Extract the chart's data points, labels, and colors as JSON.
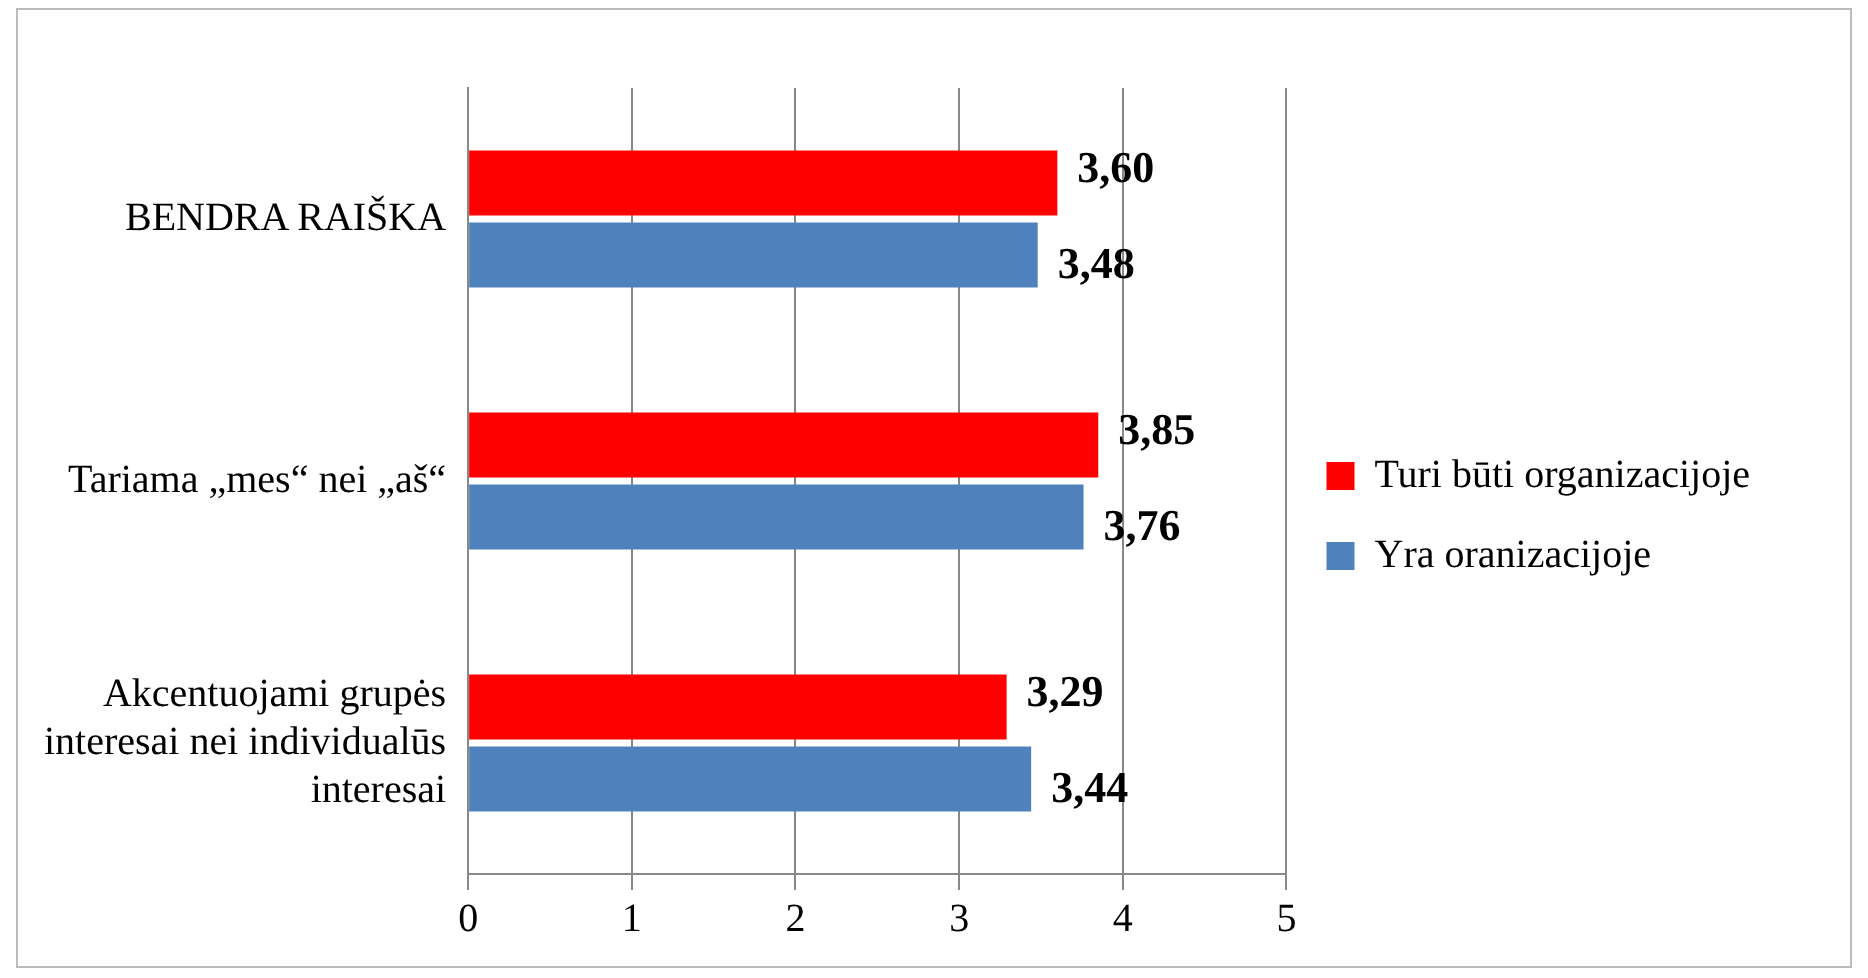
{
  "chart_data": {
    "type": "bar",
    "orientation": "horizontal",
    "categories": [
      "BENDRA RAIŠKA",
      "Tariama „mes“ nei „aš“",
      "Akcentuojami grupės interesai nei individualūs interesai"
    ],
    "series": [
      {
        "name": "Turi būti organizacijoje",
        "color": "#ff0000",
        "values": [
          3.6,
          3.85,
          3.29
        ],
        "value_labels": [
          "3,60",
          "3,85",
          "3,29"
        ]
      },
      {
        "name": "Yra oranizacijoje",
        "color": "#4f81bd",
        "values": [
          3.48,
          3.76,
          3.44
        ],
        "value_labels": [
          "3,48",
          "3,76",
          "3,44"
        ]
      }
    ],
    "xlim": [
      0,
      5
    ],
    "xticks": [
      0,
      1,
      2,
      3,
      4,
      5
    ],
    "grid": "x",
    "legend": "right"
  }
}
